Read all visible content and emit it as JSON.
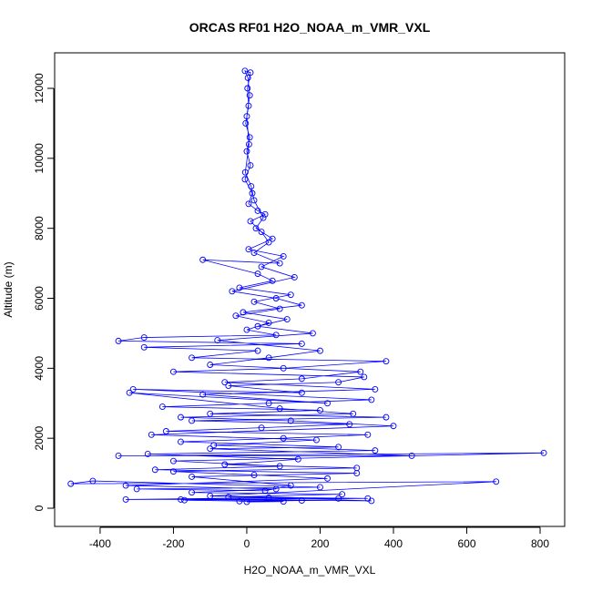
{
  "chart_data": {
    "type": "scatter",
    "title": "ORCAS RF01 H2O_NOAA_m_VMR_VXL",
    "x_label": "H2O_NOAA_m_VMR_VXL",
    "y_label": "Altitude (m)",
    "color": "#0000ff",
    "lines": true,
    "x": [
      -20,
      150,
      -180,
      340,
      60,
      -330,
      250,
      -100,
      680,
      -480,
      -420,
      200,
      -300,
      50,
      120,
      -150,
      300,
      -250,
      90,
      -200,
      810,
      -350,
      450,
      -100,
      250,
      -180,
      100,
      330,
      -220,
      40,
      280,
      -150,
      380,
      -100,
      200,
      -230,
      60,
      340,
      -310,
      150,
      -50,
      250,
      320,
      -200,
      100,
      380,
      -150,
      30,
      -280,
      150,
      -350,
      -280,
      80,
      0,
      60,
      -30,
      90,
      20,
      120,
      -20,
      70,
      30,
      -120,
      90,
      20,
      60,
      40,
      10,
      50,
      30,
      5,
      15,
      -5,
      10,
      0,
      8,
      -3,
      5,
      2,
      10,
      -5,
      3,
      8,
      0,
      6,
      -4,
      12,
      20,
      45,
      25,
      70,
      5,
      100,
      40,
      130,
      -40,
      80,
      150,
      -10,
      110,
      30,
      180,
      -80,
      200,
      60,
      -100,
      310,
      150,
      -60,
      350,
      -120,
      220,
      -320,
      90,
      290,
      -180,
      120,
      400,
      -260,
      190,
      -90,
      350,
      -270,
      140,
      -60,
      300,
      -200,
      20,
      220,
      -330,
      80,
      -150,
      260,
      -50,
      330,
      -170,
      100,
      0
    ],
    "values": [
      200,
      220,
      250,
      210,
      300,
      250,
      280,
      350,
      760,
      700,
      780,
      600,
      550,
      500,
      650,
      900,
      1000,
      1100,
      1200,
      1350,
      1580,
      1500,
      1500,
      1700,
      1750,
      1900,
      2000,
      2100,
      2200,
      2300,
      2400,
      2500,
      2600,
      2700,
      2800,
      2900,
      3000,
      3100,
      3400,
      3300,
      3500,
      3600,
      3750,
      3900,
      4000,
      4200,
      4300,
      4500,
      4600,
      4700,
      4780,
      4880,
      4950,
      5100,
      5300,
      5500,
      5700,
      5900,
      6100,
      6300,
      6500,
      6700,
      7100,
      7000,
      7300,
      7600,
      7900,
      8200,
      8400,
      8500,
      8700,
      9000,
      9400,
      9800,
      10200,
      10600,
      11000,
      11500,
      12000,
      12450,
      12500,
      12300,
      11800,
      11200,
      10400,
      9600,
      9200,
      8800,
      8300,
      8000,
      7700,
      7400,
      7200,
      6900,
      6600,
      6200,
      6000,
      5800,
      5600,
      5400,
      5200,
      5000,
      4800,
      4500,
      4300,
      4100,
      3900,
      3700,
      3600,
      3400,
      3250,
      3000,
      3300,
      2850,
      2700,
      2600,
      2500,
      2350,
      2100,
      1950,
      1800,
      1650,
      1550,
      1400,
      1250,
      1150,
      1050,
      950,
      850,
      650,
      550,
      450,
      400,
      320,
      280,
      230,
      190,
      180
    ],
    "xlim": [
      -524,
      867
    ],
    "ylim": [
      -520,
      13015
    ],
    "xticks": [
      -400,
      -200,
      0,
      200,
      400,
      600,
      800
    ],
    "yticks": [
      0,
      2000,
      4000,
      6000,
      8000,
      10000,
      12000
    ]
  }
}
